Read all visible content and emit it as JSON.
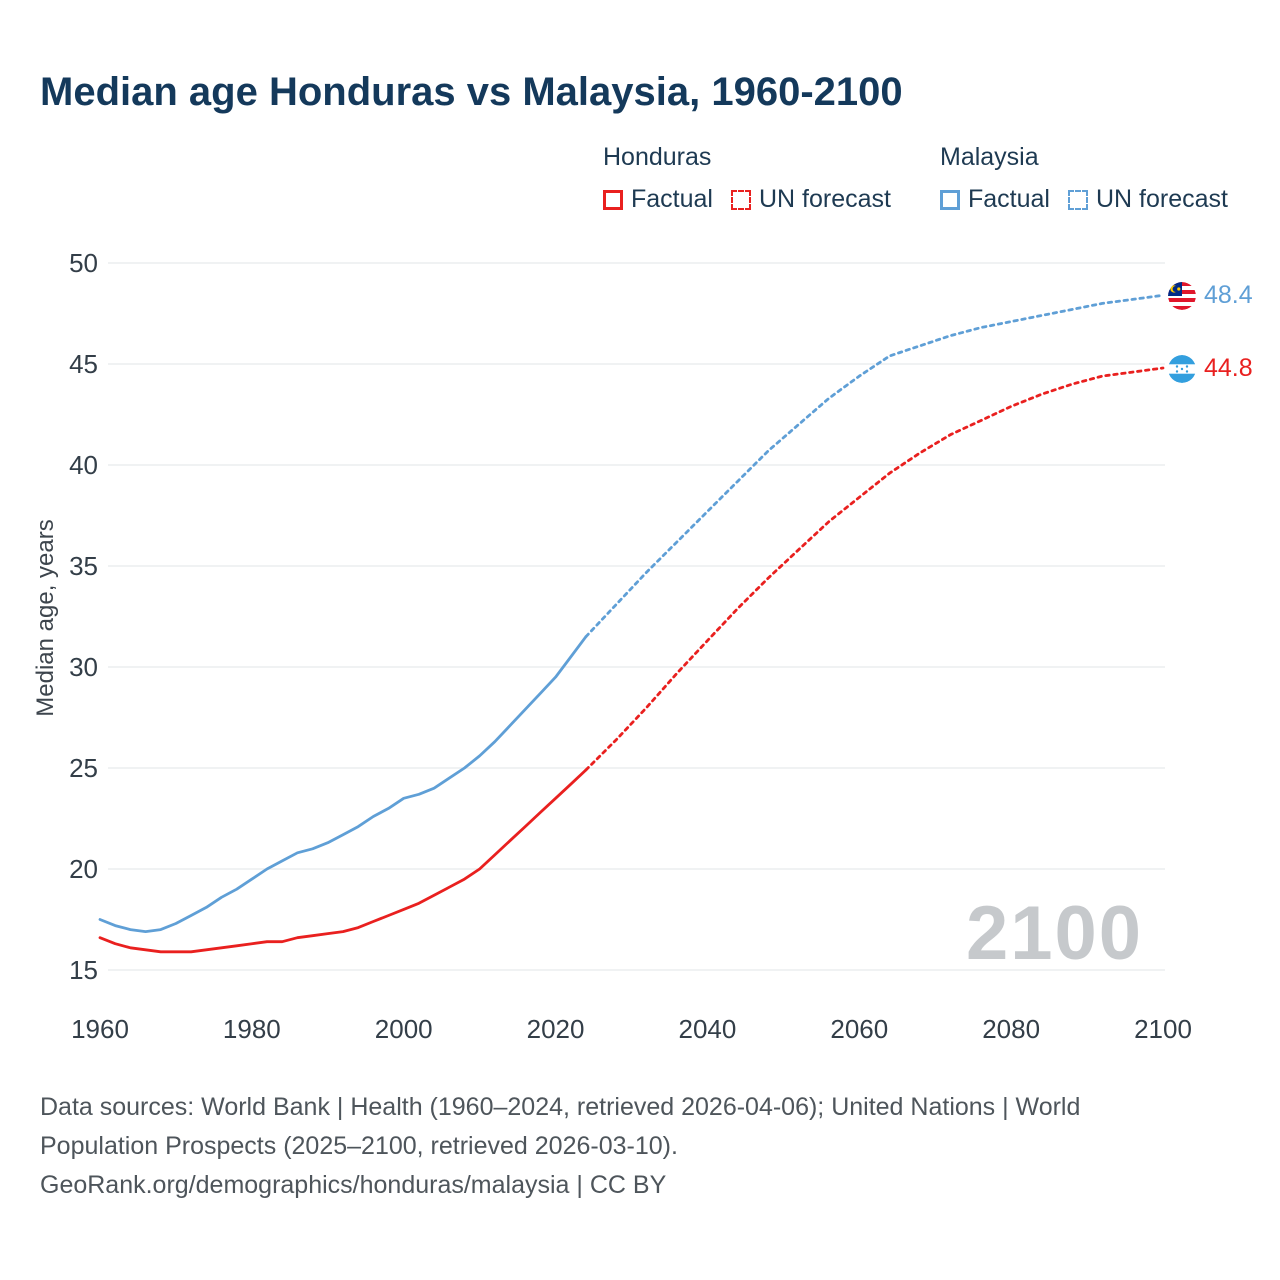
{
  "title": "Median age Honduras vs Malaysia, 1960-2100",
  "ylabel": "Median age, years",
  "watermark": "2100",
  "legend": {
    "honduras_header": "Honduras",
    "malaysia_header": "Malaysia",
    "factual_label": "Factual",
    "forecast_label": "UN forecast"
  },
  "colors": {
    "honduras": "#e9201f",
    "malaysia": "#5f9fd6",
    "title": "#14395b",
    "legend_text": "#1e3a52",
    "axis_text": "#333e48",
    "gridline": "#e8eaec",
    "watermark": "#c6c9cc",
    "footer_text": "#4e555b"
  },
  "end_labels": [
    {
      "country": "Malaysia",
      "value": 48.4,
      "color_key": "malaysia"
    },
    {
      "country": "Honduras",
      "value": 44.8,
      "color_key": "honduras"
    }
  ],
  "footer": {
    "lines": [
      "Data sources: World Bank | Health (1960–2024, retrieved 2026-04-06); United Nations | World",
      "Population Prospects (2025–2100, retrieved 2026-03-10).",
      "GeoRank.org/demographics/honduras/malaysia | CC BY"
    ]
  },
  "chart_data": {
    "type": "line",
    "title": "Median age Honduras vs Malaysia, 1960-2100",
    "xlabel": "",
    "ylabel": "Median age, years",
    "xlim": [
      1960,
      2100
    ],
    "ylim": [
      15,
      50
    ],
    "xticks": [
      1960,
      1980,
      2000,
      2020,
      2040,
      2060,
      2080,
      2100
    ],
    "yticks": [
      15,
      20,
      25,
      30,
      35,
      40,
      45,
      50
    ],
    "grid": "horizontal",
    "legend_position": "top-right",
    "series": [
      {
        "id": "malaysia-factual",
        "name": "Malaysia Factual",
        "color_key": "malaysia",
        "style": "solid",
        "x": [
          1960,
          1962,
          1964,
          1966,
          1968,
          1970,
          1972,
          1974,
          1976,
          1978,
          1980,
          1982,
          1984,
          1986,
          1988,
          1990,
          1992,
          1994,
          1996,
          1998,
          2000,
          2002,
          2004,
          2006,
          2008,
          2010,
          2012,
          2014,
          2016,
          2018,
          2020,
          2022,
          2024
        ],
        "y": [
          17.5,
          17.2,
          17.0,
          16.9,
          17.0,
          17.3,
          17.7,
          18.1,
          18.6,
          19.0,
          19.5,
          20.0,
          20.4,
          20.8,
          21.0,
          21.3,
          21.7,
          22.1,
          22.6,
          23.0,
          23.5,
          23.7,
          24.0,
          24.5,
          25.0,
          25.6,
          26.3,
          27.1,
          27.9,
          28.7,
          29.5,
          30.5,
          31.5
        ]
      },
      {
        "id": "malaysia-forecast",
        "name": "Malaysia UN forecast",
        "color_key": "malaysia",
        "style": "dashed",
        "x": [
          2024,
          2028,
          2032,
          2036,
          2040,
          2044,
          2048,
          2052,
          2056,
          2060,
          2064,
          2068,
          2072,
          2076,
          2080,
          2084,
          2088,
          2092,
          2096,
          2100
        ],
        "y": [
          31.5,
          33.1,
          34.7,
          36.2,
          37.7,
          39.2,
          40.7,
          42.0,
          43.3,
          44.4,
          45.4,
          45.9,
          46.4,
          46.8,
          47.1,
          47.4,
          47.7,
          48.0,
          48.2,
          48.4
        ]
      },
      {
        "id": "honduras-factual",
        "name": "Honduras Factual",
        "color_key": "honduras",
        "style": "solid",
        "x": [
          1960,
          1962,
          1964,
          1966,
          1968,
          1970,
          1972,
          1974,
          1976,
          1978,
          1980,
          1982,
          1984,
          1986,
          1988,
          1990,
          1992,
          1994,
          1996,
          1998,
          2000,
          2002,
          2004,
          2006,
          2008,
          2010,
          2012,
          2014,
          2016,
          2018,
          2020,
          2022,
          2024
        ],
        "y": [
          16.6,
          16.3,
          16.1,
          16.0,
          15.9,
          15.9,
          15.9,
          16.0,
          16.1,
          16.2,
          16.3,
          16.4,
          16.4,
          16.6,
          16.7,
          16.8,
          16.9,
          17.1,
          17.4,
          17.7,
          18.0,
          18.3,
          18.7,
          19.1,
          19.5,
          20.0,
          20.7,
          21.4,
          22.1,
          22.8,
          23.5,
          24.2,
          24.9
        ]
      },
      {
        "id": "honduras-forecast",
        "name": "Honduras UN forecast",
        "color_key": "honduras",
        "style": "dashed",
        "x": [
          2024,
          2028,
          2032,
          2036,
          2040,
          2044,
          2048,
          2052,
          2056,
          2060,
          2064,
          2068,
          2072,
          2076,
          2080,
          2084,
          2088,
          2092,
          2096,
          2100
        ],
        "y": [
          24.9,
          26.4,
          28.0,
          29.7,
          31.3,
          32.9,
          34.4,
          35.8,
          37.2,
          38.4,
          39.6,
          40.6,
          41.5,
          42.2,
          42.9,
          43.5,
          44.0,
          44.4,
          44.6,
          44.8
        ]
      }
    ]
  }
}
